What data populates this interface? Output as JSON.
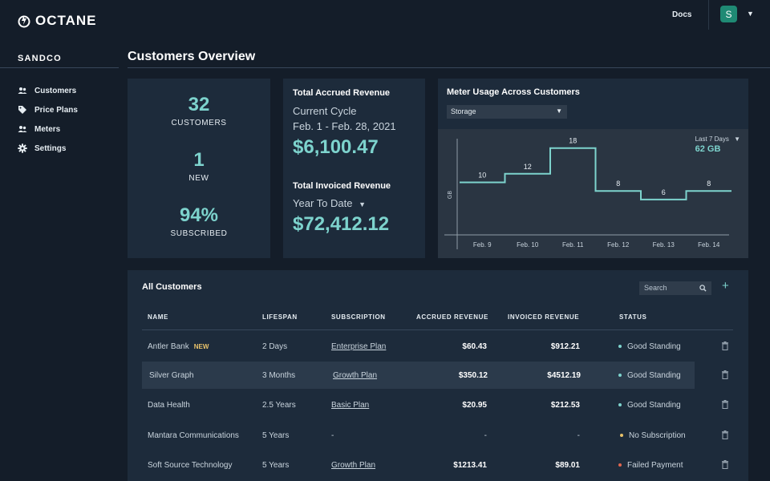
{
  "app": {
    "logo_text": "OCTANE",
    "org": "SANDCO"
  },
  "topbar": {
    "docs_label": "Docs",
    "avatar_initial": "S"
  },
  "sidebar": {
    "items": [
      {
        "label": "Customers",
        "icon": "users-icon"
      },
      {
        "label": "Price Plans",
        "icon": "tag-icon"
      },
      {
        "label": "Meters",
        "icon": "users-icon"
      },
      {
        "label": "Settings",
        "icon": "gear-icon"
      }
    ]
  },
  "page": {
    "title": "Customers Overview"
  },
  "stats": [
    {
      "value": "32",
      "label": "CUSTOMERS"
    },
    {
      "value": "1",
      "label": "NEW"
    },
    {
      "value": "94%",
      "label": "SUBSCRIBED"
    }
  ],
  "revenue": {
    "accrued_title": "Total Accrued Revenue",
    "accrued_period": "Current Cycle",
    "accrued_range": "Feb. 1 - Feb. 28, 2021",
    "accrued_amount": "$6,100.47",
    "invoiced_title": "Total Invoiced Revenue",
    "invoiced_period": "Year To Date",
    "invoiced_amount": "$72,412.12"
  },
  "meter": {
    "title": "Meter Usage Across Customers",
    "selected": "Storage",
    "range_label": "Last 7 Days",
    "range_total": "62 GB"
  },
  "chart_data": {
    "type": "line",
    "ylabel": "GB",
    "x": [
      "Feb. 9",
      "Feb. 10",
      "Feb. 11",
      "Feb. 12",
      "Feb. 13",
      "Feb. 14"
    ],
    "values": [
      10,
      12,
      18,
      8,
      6,
      8
    ],
    "step": true
  },
  "customers": {
    "title": "All Customers",
    "search_placeholder": "Search",
    "columns": [
      "NAME",
      "LIFESPAN",
      "SUBSCRIPTION",
      "ACCRUED REVENUE",
      "INVOICED REVENUE",
      "STATUS"
    ],
    "rows": [
      {
        "name": "Antler Bank",
        "badge": "NEW",
        "lifespan": "2 Days",
        "subscription": "Enterprise Plan",
        "accrued": "$60.43",
        "invoiced": "$912.21",
        "status": "Good Standing",
        "status_color": "#7dd3cd"
      },
      {
        "name": "Silver Graph",
        "badge": "",
        "lifespan": "3 Months",
        "subscription": "Growth Plan",
        "accrued": "$350.12",
        "invoiced": "$4512.19",
        "status": "Good Standing",
        "status_color": "#7dd3cd"
      },
      {
        "name": "Data Health",
        "badge": "",
        "lifespan": "2.5 Years",
        "subscription": "Basic Plan",
        "accrued": "$20.95",
        "invoiced": "$212.53",
        "status": "Good Standing",
        "status_color": "#7dd3cd"
      },
      {
        "name": "Mantara Communications",
        "badge": "",
        "lifespan": "5 Years",
        "subscription": "-",
        "accrued": "-",
        "invoiced": "-",
        "status": "No Subscription",
        "status_color": "#e8c26a"
      },
      {
        "name": "Soft Source Technology",
        "badge": "",
        "lifespan": "5 Years",
        "subscription": "Growth Plan",
        "accrued": "$1213.41",
        "invoiced": "$89.01",
        "status": "Failed Payment",
        "status_color": "#e0664f"
      }
    ]
  }
}
